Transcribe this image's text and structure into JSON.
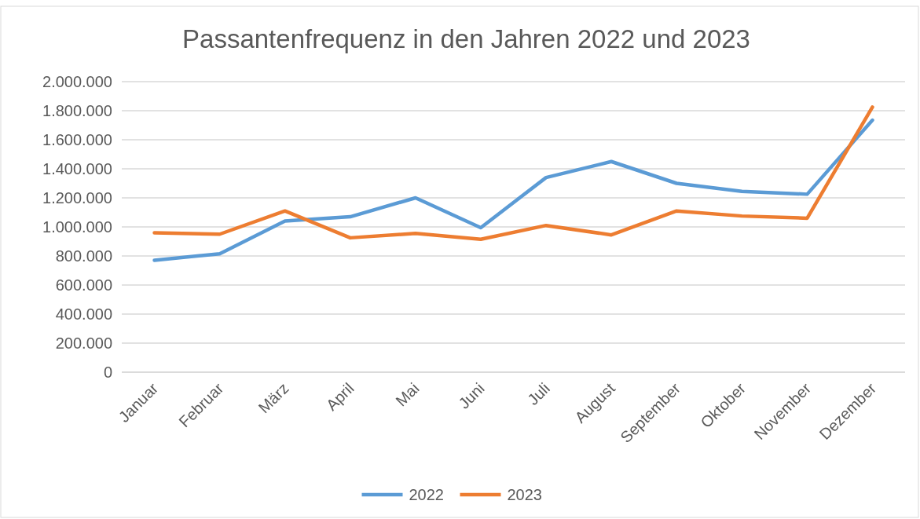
{
  "chart_data": {
    "type": "line",
    "title": "Passantenfrequenz in den Jahren 2022 und 2023",
    "categories": [
      "Januar",
      "Februar",
      "März",
      "April",
      "Mai",
      "Juni",
      "Juli",
      "August",
      "September",
      "Oktober",
      "November",
      "Dezember"
    ],
    "series": [
      {
        "name": "2022",
        "color": "#5b9bd5",
        "values": [
          770000,
          815000,
          1040000,
          1070000,
          1200000,
          995000,
          1340000,
          1450000,
          1300000,
          1245000,
          1225000,
          1735000
        ]
      },
      {
        "name": "2023",
        "color": "#ed7d31",
        "values": [
          960000,
          950000,
          1110000,
          925000,
          955000,
          915000,
          1010000,
          945000,
          1110000,
          1075000,
          1060000,
          1825000
        ]
      }
    ],
    "ylim": [
      0,
      2000000
    ],
    "yticks": [
      {
        "value": 0,
        "label": "0"
      },
      {
        "value": 200000,
        "label": "200.000"
      },
      {
        "value": 400000,
        "label": "400.000"
      },
      {
        "value": 600000,
        "label": "600.000"
      },
      {
        "value": 800000,
        "label": "800.000"
      },
      {
        "value": 1000000,
        "label": "1.000.000"
      },
      {
        "value": 1200000,
        "label": "1.200.000"
      },
      {
        "value": 1400000,
        "label": "1.400.000"
      },
      {
        "value": 1600000,
        "label": "1.600.000"
      },
      {
        "value": 1800000,
        "label": "1.800.000"
      },
      {
        "value": 2000000,
        "label": "2.000.000"
      }
    ],
    "grid": "y",
    "legend": "bottom",
    "marker": "none",
    "line_style": "solid"
  }
}
